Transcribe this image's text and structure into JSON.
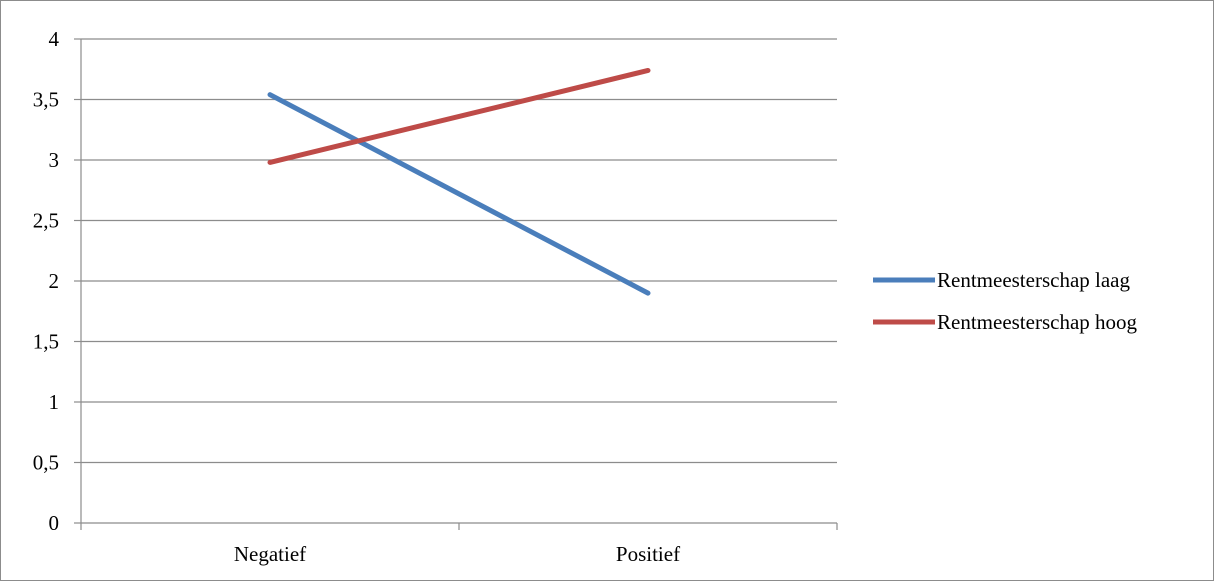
{
  "chart_data": {
    "type": "line",
    "categories": [
      "Negatief",
      "Positief"
    ],
    "series": [
      {
        "name": "Rentmeesterschap laag",
        "values": [
          3.54,
          1.9
        ],
        "color": "#4a7ebb"
      },
      {
        "name": "Rentmeesterschap hoog",
        "values": [
          2.98,
          3.74
        ],
        "color": "#be4b48"
      }
    ],
    "ylim": [
      0,
      4
    ],
    "yticks": [
      0,
      0.5,
      1,
      1.5,
      2,
      2.5,
      3,
      3.5,
      4
    ],
    "ytick_labels": [
      "0",
      "0,5",
      "1",
      "1,5",
      "2",
      "2,5",
      "3",
      "3,5",
      "4"
    ],
    "grid": true,
    "legend_position": "right",
    "title": "",
    "xlabel": "",
    "ylabel": ""
  }
}
